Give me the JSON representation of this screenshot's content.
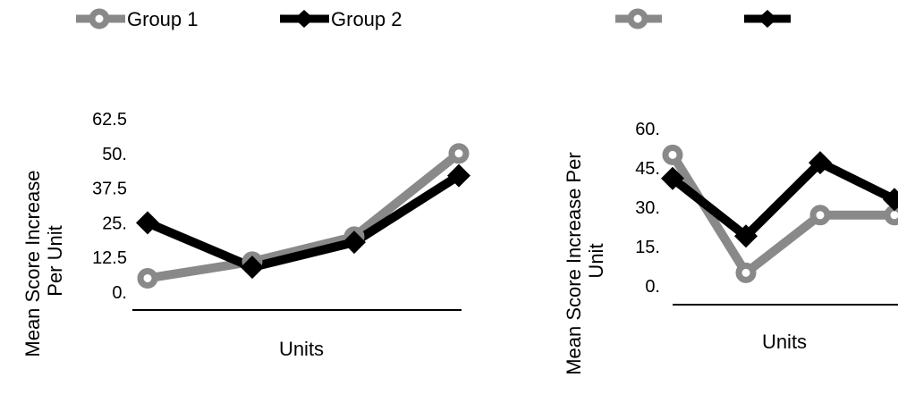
{
  "chart_data": [
    {
      "type": "line",
      "categories": [
        "",
        "",
        "",
        ""
      ],
      "series": [
        {
          "name": "Group 1",
          "values": [
            5,
            11,
            20,
            50
          ],
          "color": "#898989",
          "marker": "circle"
        },
        {
          "name": "Group 2",
          "values": [
            25,
            9,
            18,
            42
          ],
          "color": "#000000",
          "marker": "diamond"
        }
      ],
      "xlabel": "Units",
      "ylabel": "Mean Score Increase Per Unit",
      "ylim": [
        0,
        62.5
      ],
      "yticks": [
        "0.",
        "12.5",
        "25.",
        "37.5",
        "50.",
        "62.5"
      ],
      "grid": false,
      "legend": "top-left"
    },
    {
      "type": "line",
      "categories": [
        "",
        "",
        "",
        ""
      ],
      "series": [
        {
          "name": "",
          "values": [
            50,
            5,
            27,
            27
          ],
          "color": "#898989",
          "marker": "circle"
        },
        {
          "name": "",
          "values": [
            41,
            19,
            47,
            33
          ],
          "color": "#000000",
          "marker": "diamond"
        }
      ],
      "xlabel": "Units",
      "ylabel": "Mean Score Increase Per Unit",
      "ylim": [
        0,
        60
      ],
      "yticks": [
        "0.",
        "15.",
        "30.",
        "45.",
        "60."
      ],
      "grid": false,
      "legend": "top"
    }
  ]
}
